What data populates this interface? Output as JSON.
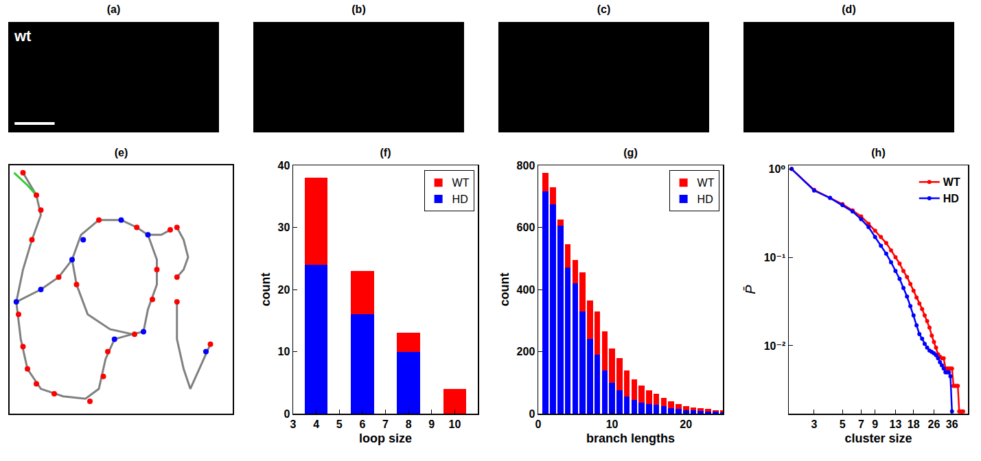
{
  "chart_data": [
    {
      "type": "image",
      "title": "(a)",
      "annotations": [
        "wt"
      ],
      "color": "#000000"
    },
    {
      "type": "image",
      "title": "(b)",
      "color": "#000000"
    },
    {
      "type": "image",
      "title": "(c)",
      "color": "#000000"
    },
    {
      "type": "image",
      "title": "(d)",
      "color": "#000000"
    },
    {
      "type": "line",
      "title": "(e)",
      "tick_labels": false,
      "xlim": [
        0,
        100
      ],
      "ylim": [
        0,
        100
      ],
      "series": [
        {
          "type": "line",
          "color": "#808080",
          "x": [
            3,
            5,
            8,
            14,
            24,
            34,
            40,
            43,
            47,
            55,
            60
          ],
          "values": [
            45,
            30,
            18,
            10,
            7,
            6,
            10,
            22,
            30,
            32,
            33
          ]
        },
        {
          "type": "line",
          "color": "#808080",
          "x": [
            3,
            6,
            10,
            14,
            12,
            6
          ],
          "values": [
            45,
            58,
            70,
            80,
            88,
            97
          ]
        },
        {
          "type": "line",
          "color": "#808080",
          "x": [
            3,
            14,
            22,
            28
          ],
          "values": [
            45,
            50,
            55,
            62
          ]
        },
        {
          "type": "line",
          "color": "#808080",
          "x": [
            28,
            32,
            40,
            50,
            57,
            62,
            66,
            66,
            62,
            60
          ],
          "values": [
            62,
            72,
            78,
            78,
            75,
            72,
            62,
            52,
            42,
            33
          ]
        },
        {
          "type": "line",
          "color": "#808080",
          "x": [
            28,
            30,
            35,
            45,
            55
          ],
          "values": [
            62,
            52,
            40,
            34,
            32
          ]
        },
        {
          "type": "line",
          "color": "#808080",
          "x": [
            62,
            68,
            72
          ],
          "values": [
            72,
            72,
            74
          ]
        },
        {
          "type": "line",
          "color": "#33cc33",
          "x": [
            2,
            8,
            12
          ],
          "values": [
            97,
            92,
            88
          ]
        },
        {
          "type": "line",
          "color": "#808080",
          "x": [
            75,
            78,
            80,
            78,
            75
          ],
          "values": [
            75,
            70,
            63,
            58,
            55
          ]
        },
        {
          "type": "line",
          "color": "#808080",
          "x": [
            75,
            75,
            78,
            81,
            86,
            90
          ],
          "values": [
            45,
            30,
            18,
            10,
            20,
            28
          ]
        },
        {
          "type": "scatter",
          "color": "#ff0000",
          "x": [
            12,
            14,
            6,
            4,
            6,
            12,
            20,
            36,
            42,
            44,
            56,
            30,
            22,
            10,
            40,
            57,
            66,
            64,
            72,
            75,
            75,
            75,
            90,
            8
          ],
          "values": [
            88,
            82,
            97,
            40,
            27,
            12,
            8,
            5,
            15,
            25,
            32,
            52,
            55,
            70,
            78,
            75,
            58,
            46,
            74,
            75,
            55,
            45,
            28,
            18
          ]
        },
        {
          "type": "scatter",
          "color": "#0000ff",
          "x": [
            3,
            28,
            60,
            62,
            47,
            33,
            88,
            14,
            50
          ],
          "values": [
            45,
            62,
            33,
            72,
            30,
            70,
            25,
            50,
            78
          ]
        }
      ]
    },
    {
      "type": "bar",
      "title": "(f)",
      "stacked": true,
      "legend": "top-right",
      "x_label": "loop size",
      "y_label": "count",
      "x": [
        4,
        6,
        8,
        10
      ],
      "xlim": [
        3,
        11
      ],
      "xticks": [
        3,
        4,
        5,
        6,
        7,
        8,
        9,
        10
      ],
      "ylim": [
        0,
        40
      ],
      "yticks": [
        0,
        10,
        20,
        30,
        40
      ],
      "series": [
        {
          "name": "HD",
          "color": "#0000ff",
          "values": [
            24,
            16,
            10,
            0
          ]
        },
        {
          "name": "WT",
          "color": "#ff0000",
          "values": [
            14,
            7,
            3,
            4
          ]
        }
      ]
    },
    {
      "type": "bar",
      "title": "(g)",
      "stacked": true,
      "legend": "top-right",
      "x_label": "branch lengths",
      "y_label": "count",
      "x": [
        1,
        2,
        3,
        4,
        5,
        6,
        7,
        8,
        9,
        10,
        11,
        12,
        13,
        14,
        15,
        16,
        17,
        18,
        19,
        20,
        21,
        22,
        23,
        24,
        25
      ],
      "xlim": [
        0,
        25
      ],
      "xticks": [
        0,
        10,
        20
      ],
      "ylim": [
        0,
        800
      ],
      "yticks": [
        0,
        200,
        400,
        600,
        800
      ],
      "series": [
        {
          "name": "HD",
          "color": "#0000ff",
          "values": [
            715,
            675,
            605,
            470,
            420,
            330,
            240,
            190,
            140,
            100,
            75,
            55,
            45,
            35,
            30,
            28,
            25,
            18,
            15,
            12,
            10,
            8,
            7,
            6,
            5
          ]
        },
        {
          "name": "WT",
          "color": "#ff0000",
          "values": [
            60,
            55,
            20,
            75,
            75,
            125,
            125,
            140,
            125,
            110,
            105,
            85,
            65,
            55,
            45,
            37,
            25,
            22,
            15,
            13,
            10,
            10,
            8,
            6,
            5
          ]
        }
      ]
    },
    {
      "type": "line",
      "title": "(h)",
      "log": true,
      "legend": "top-right",
      "marker": "circle",
      "x_label": "cluster size",
      "y_label": "P̄",
      "xlim": [
        1.9,
        48
      ],
      "xticks": [
        3,
        5,
        7,
        9,
        13,
        18,
        26,
        36
      ],
      "ylim": [
        0.0017,
        1.1
      ],
      "yticks": [
        {
          "value": 0.01,
          "label": "10⁻²"
        },
        {
          "value": 0.1,
          "label": "10⁻¹"
        },
        {
          "value": 1,
          "label": "10⁰"
        }
      ],
      "series": [
        {
          "name": "WT",
          "color": "#ff0000",
          "x": [
            2,
            3,
            4,
            5,
            6,
            7,
            8,
            9,
            10,
            11,
            12,
            13,
            14,
            15,
            16,
            17,
            18,
            19,
            20,
            21,
            22,
            23,
            24,
            25,
            26,
            27,
            28,
            29,
            30,
            31,
            32,
            33,
            34,
            35,
            36,
            37,
            38,
            39,
            40,
            41,
            42,
            43,
            44
          ],
          "values": [
            1,
            0.58,
            0.47,
            0.4,
            0.34,
            0.29,
            0.24,
            0.2,
            0.17,
            0.145,
            0.12,
            0.1,
            0.085,
            0.07,
            0.06,
            0.05,
            0.042,
            0.035,
            0.03,
            0.026,
            0.022,
            0.019,
            0.016,
            0.013,
            0.011,
            0.0095,
            0.008,
            0.0075,
            0.0072,
            0.0072,
            0.0055,
            0.0055,
            0.0055,
            0.0055,
            0.0055,
            0.0035,
            0.0035,
            0.0035,
            0.0035,
            0.0018,
            0.0018,
            0.0018,
            0.0018
          ]
        },
        {
          "name": "HD",
          "color": "#0000ff",
          "x": [
            2,
            3,
            4,
            5,
            6,
            7,
            8,
            9,
            10,
            11,
            12,
            13,
            14,
            15,
            16,
            17,
            18,
            19,
            20,
            21,
            22,
            23,
            24,
            25,
            26,
            27,
            28,
            29,
            30,
            31,
            32,
            33,
            34,
            35,
            36
          ],
          "values": [
            1,
            0.57,
            0.47,
            0.39,
            0.33,
            0.27,
            0.22,
            0.17,
            0.135,
            0.11,
            0.088,
            0.07,
            0.057,
            0.045,
            0.036,
            0.028,
            0.022,
            0.017,
            0.0135,
            0.012,
            0.0105,
            0.0095,
            0.0088,
            0.0085,
            0.0082,
            0.0078,
            0.0072,
            0.0065,
            0.006,
            0.0055,
            0.005,
            0.005,
            0.005,
            0.0045,
            0.0018
          ]
        }
      ]
    }
  ]
}
